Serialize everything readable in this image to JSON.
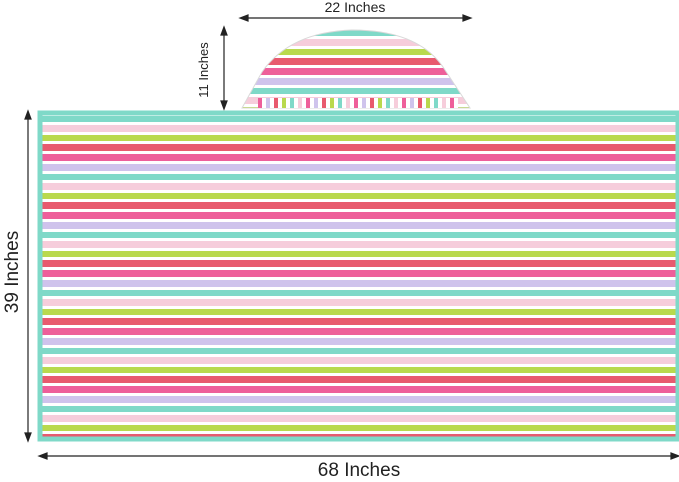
{
  "measurements": {
    "hood_width": "22 Inches",
    "hood_height": "11 Inches",
    "towel_height": "39 Inches",
    "towel_width": "68 Inches"
  },
  "stripe_colors": [
    "#7fd9c8",
    "#f6cddb",
    "#b9d94d",
    "#e85a6e",
    "#ee5f9a",
    "#cfc3ec",
    "#ffffff"
  ]
}
